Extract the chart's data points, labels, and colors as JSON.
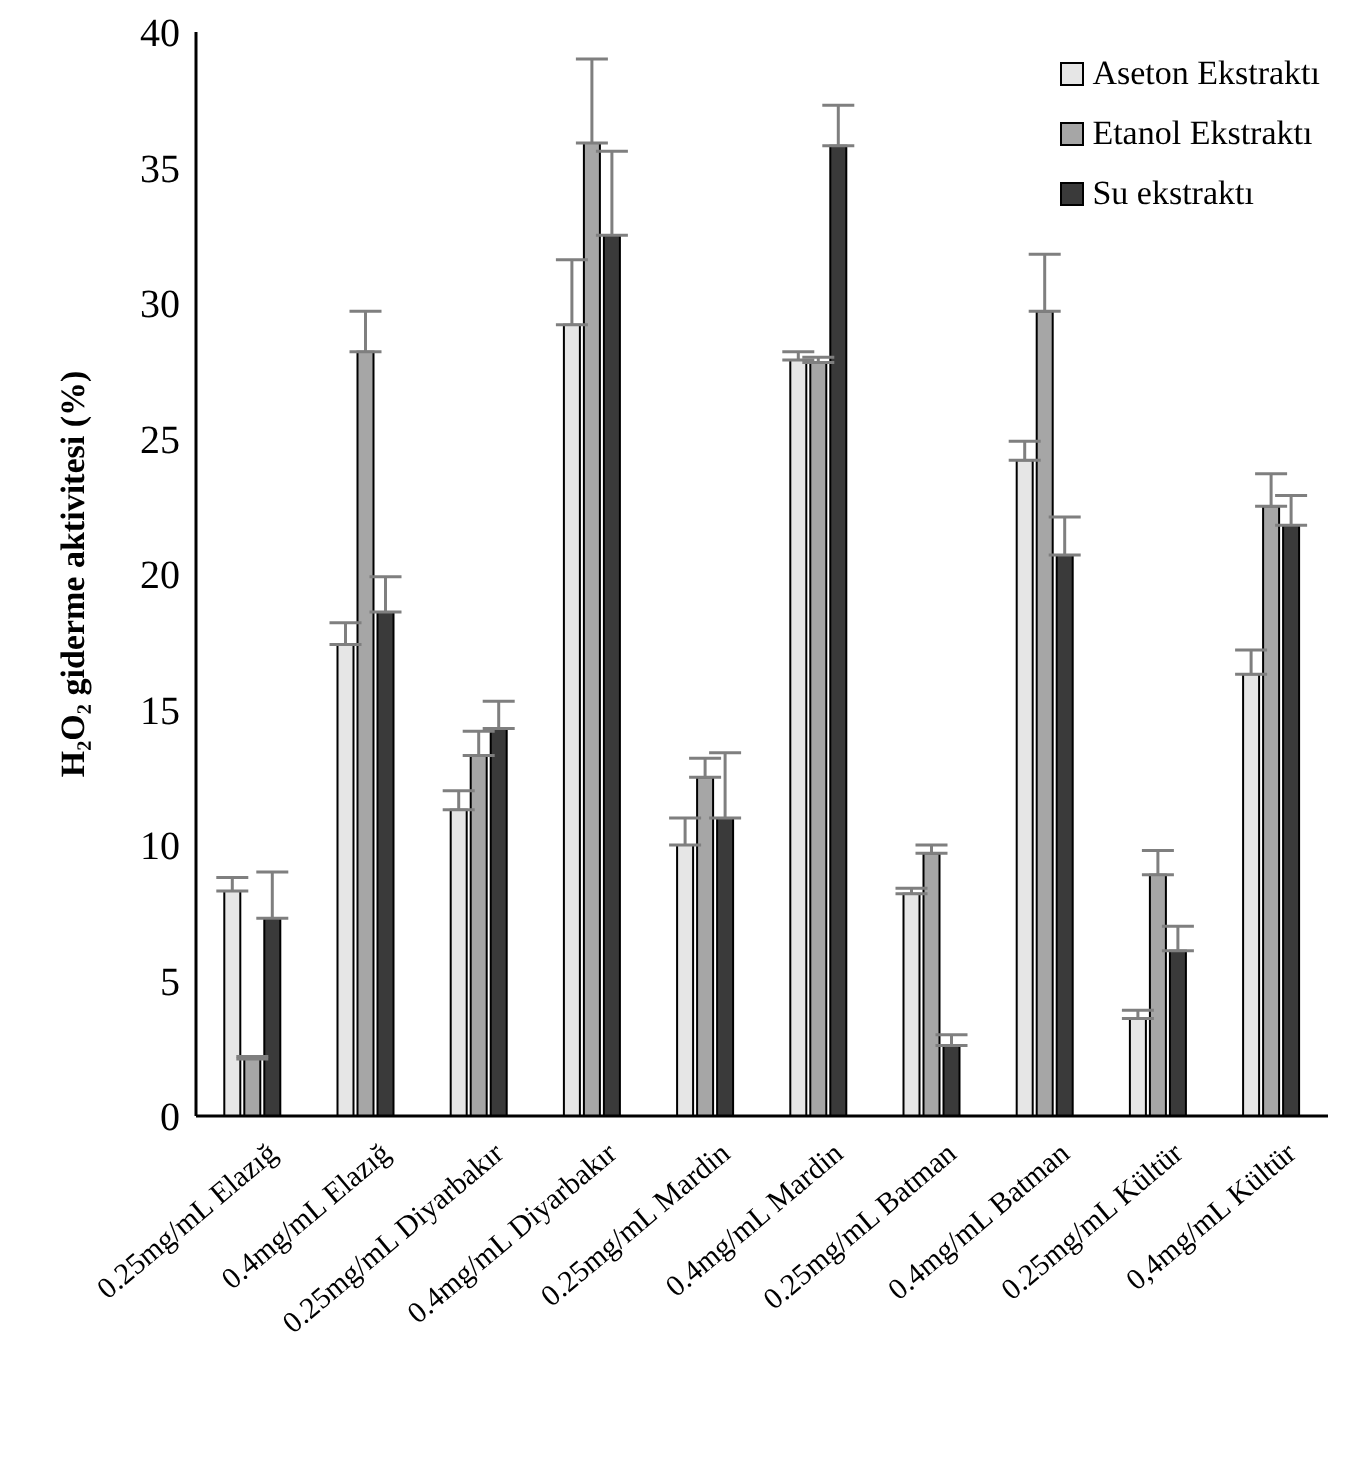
{
  "chart_data": {
    "type": "bar",
    "ylabel": "H₂O₂ giderme aktivitesi (%)",
    "categories": [
      "0.25mg/mL Elazığ",
      "0.4mg/mL Elazığ",
      "0.25mg/mL Diyarbakır",
      "0.4mg/mL Diyarbakır",
      "0.25mg/mL Mardin",
      "0.4mg/mL Mardin",
      "0.25mg/mL Batman",
      "0.4mg/mL Batman",
      "0.25mg/mL Kültür",
      "0,4mg/mL Kültür"
    ],
    "series": [
      {
        "name": "Aseton Ekstraktı",
        "color": "#e6e6e6",
        "values": [
          8.3,
          17.4,
          11.3,
          29.2,
          10.0,
          27.9,
          8.2,
          24.2,
          3.6,
          16.3
        ],
        "errors": [
          [
            8.3,
            8.8
          ],
          [
            17.4,
            18.2
          ],
          [
            11.3,
            12.0
          ],
          [
            29.2,
            31.6
          ],
          [
            10.0,
            11.0
          ],
          [
            27.9,
            28.2
          ],
          [
            8.2,
            8.4
          ],
          [
            24.2,
            24.9
          ],
          [
            3.6,
            3.9
          ],
          [
            16.3,
            17.2
          ]
        ]
      },
      {
        "name": "Etanol Ekstraktı",
        "color": "#a6a6a6",
        "values": [
          2.1,
          28.2,
          13.3,
          35.9,
          12.5,
          27.8,
          9.7,
          29.7,
          8.9,
          22.5
        ],
        "errors": [
          [
            2.1,
            2.2
          ],
          [
            28.2,
            29.7
          ],
          [
            13.3,
            14.2
          ],
          [
            35.9,
            39.0
          ],
          [
            12.5,
            13.2
          ],
          [
            27.8,
            28.0
          ],
          [
            9.7,
            10.0
          ],
          [
            29.7,
            31.8
          ],
          [
            8.9,
            9.8
          ],
          [
            22.5,
            23.7
          ]
        ]
      },
      {
        "name": "Su ekstraktı",
        "color": "#3a3a3a",
        "values": [
          7.3,
          18.6,
          14.3,
          32.5,
          11.0,
          35.8,
          2.6,
          20.7,
          6.1,
          21.8
        ],
        "errors": [
          [
            7.3,
            9.0
          ],
          [
            18.6,
            19.9
          ],
          [
            14.3,
            15.3
          ],
          [
            32.5,
            35.6
          ],
          [
            11.0,
            13.4
          ],
          [
            35.8,
            37.3
          ],
          [
            2.6,
            3.0
          ],
          [
            20.7,
            22.1
          ],
          [
            6.1,
            7.0
          ],
          [
            21.8,
            22.9
          ]
        ]
      }
    ],
    "ylim": [
      0,
      40
    ],
    "yticks": [
      0,
      5,
      10,
      15,
      20,
      25,
      30,
      35,
      40
    ],
    "grid": false,
    "legend": "top right"
  }
}
